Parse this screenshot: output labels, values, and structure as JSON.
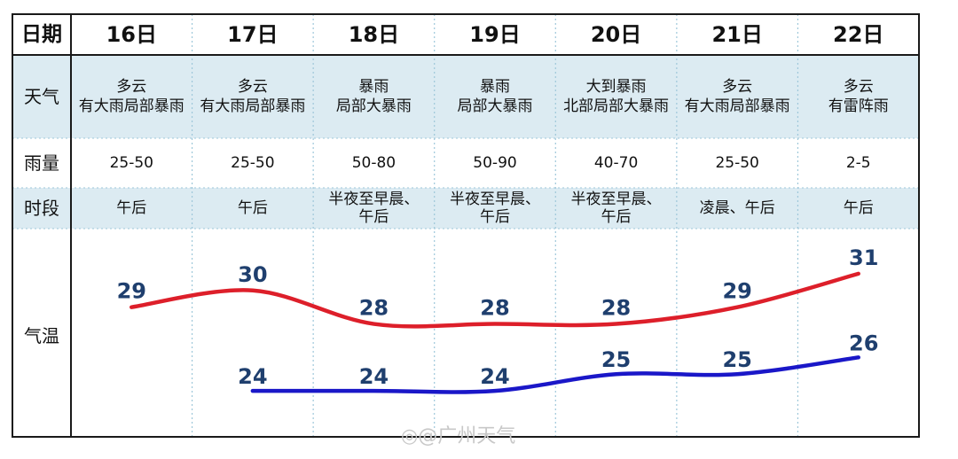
{
  "table": {
    "row_labels": {
      "date": "日期",
      "weather": "天气",
      "rain": "雨量",
      "period": "时段",
      "temp": "气温"
    },
    "dates": [
      "16日",
      "17日",
      "18日",
      "19日",
      "20日",
      "21日",
      "22日"
    ],
    "weather": [
      [
        "多云",
        "有大雨局部暴雨"
      ],
      [
        "多云",
        "有大雨局部暴雨"
      ],
      [
        "暴雨",
        "局部大暴雨"
      ],
      [
        "暴雨",
        "局部大暴雨"
      ],
      [
        "大到暴雨",
        "北部局部大暴雨"
      ],
      [
        "多云",
        "有大雨局部暴雨"
      ],
      [
        "多云",
        "有雷阵雨"
      ]
    ],
    "rain": [
      "25-50",
      "25-50",
      "50-80",
      "50-90",
      "40-70",
      "25-50",
      "2-5"
    ],
    "period": [
      [
        "午后"
      ],
      [
        "午后"
      ],
      [
        "半夜至早晨、",
        "午后"
      ],
      [
        "半夜至早晨、",
        "午后"
      ],
      [
        "半夜至早晨、",
        "午后"
      ],
      [
        "凌晨、午后"
      ],
      [
        "午后"
      ]
    ]
  },
  "chart_data": {
    "type": "line",
    "categories": [
      "16日",
      "17日",
      "18日",
      "19日",
      "20日",
      "21日",
      "22日"
    ],
    "series": [
      {
        "values": [
          29,
          30,
          28,
          28,
          28,
          29,
          31
        ],
        "color": "#dd1f2a"
      },
      {
        "values": [
          null,
          24,
          24,
          24,
          25,
          25,
          26
        ],
        "color": "#1a17c8"
      }
    ],
    "label_color": "#1f3f6e",
    "grid": false
  },
  "colors": {
    "shaded_row": "#dcebf2",
    "border": "#1a1a1a",
    "dashed": "#9ec7da"
  },
  "watermark": "@广州天气"
}
